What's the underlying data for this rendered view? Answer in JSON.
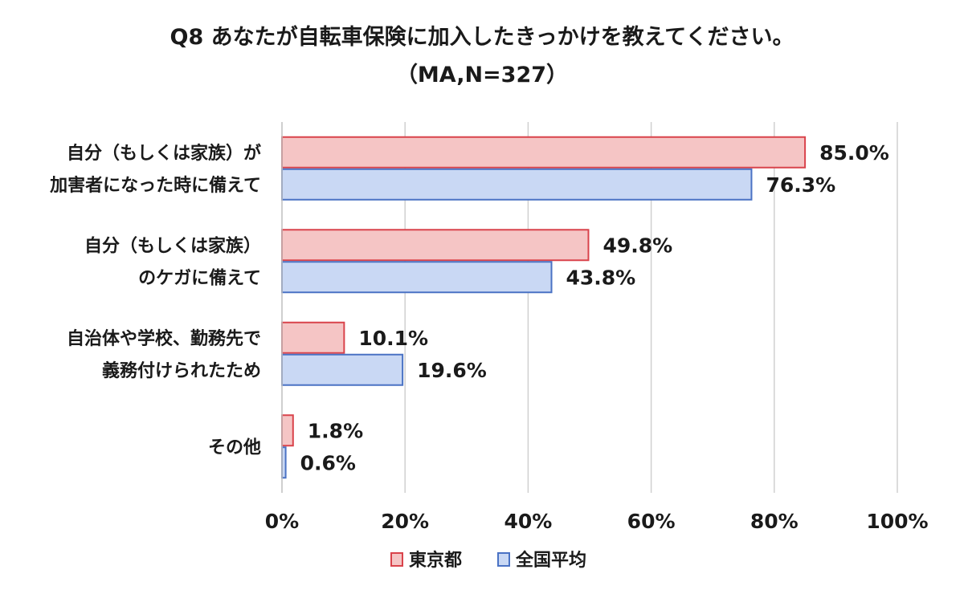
{
  "chart_data": {
    "type": "bar",
    "orientation": "horizontal",
    "title": "Q8 あなたが自転車保険に加入したきっかけを教えてください。",
    "subtitle": "（MA,N=327）",
    "categories": [
      [
        "自分（もしくは家族）が",
        "加害者になった時に備えて"
      ],
      [
        "自分（もしくは家族）",
        "のケガに備えて"
      ],
      [
        "自治体や学校、勤務先で",
        "義務付けられたため"
      ],
      [
        "その他"
      ]
    ],
    "series": [
      {
        "name": "東京都",
        "values": [
          85.0,
          49.8,
          10.1,
          1.8
        ],
        "labels": [
          "85.0%",
          "49.8%",
          "10.1%",
          "1.8%"
        ],
        "fill": "#f5c5c5",
        "stroke": "#d9434b"
      },
      {
        "name": "全国平均",
        "values": [
          76.3,
          43.8,
          19.6,
          0.6
        ],
        "labels": [
          "76.3%",
          "43.8%",
          "19.6%",
          "0.6%"
        ],
        "fill": "#c9d8f4",
        "stroke": "#4a72c4"
      }
    ],
    "xlim": [
      0,
      100
    ],
    "x_ticks": [
      0,
      20,
      40,
      60,
      80,
      100
    ],
    "x_tick_labels": [
      "0%",
      "20%",
      "40%",
      "60%",
      "80%",
      "100%"
    ],
    "grid": true,
    "grid_color": "#d0d0d0",
    "legend_position": "bottom"
  }
}
